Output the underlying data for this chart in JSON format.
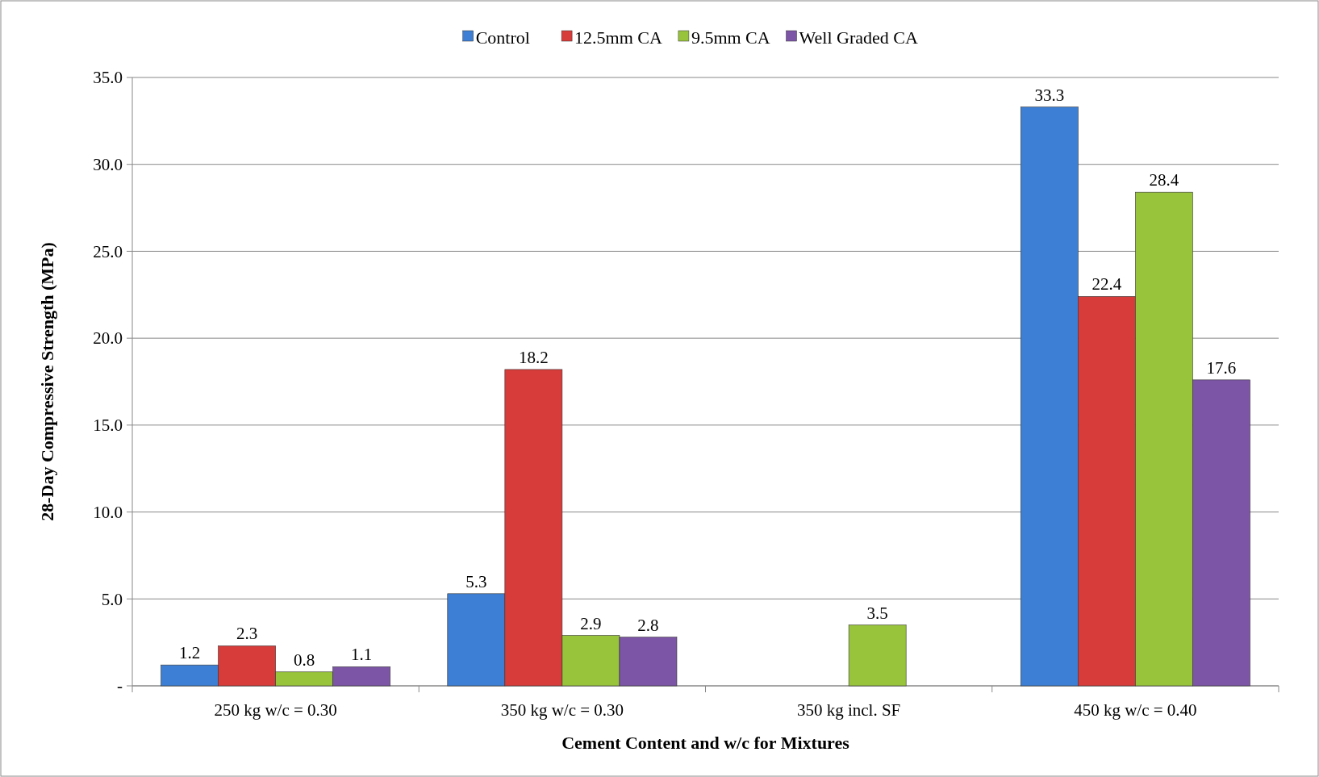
{
  "chart_data": {
    "type": "bar",
    "xlabel": "Cement Content and w/c for Mixtures",
    "ylabel": "28-Day Compressive Strength (MPa)",
    "categories": [
      "250 kg w/c = 0.30",
      "350 kg w/c = 0.30",
      "350 kg incl. SF",
      "450 kg w/c = 0.40"
    ],
    "series": [
      {
        "name": "Control",
        "color": "#3d7fd4",
        "values": [
          1.2,
          5.3,
          null,
          33.3
        ]
      },
      {
        "name": "12.5mm CA",
        "color": "#d83c3a",
        "values": [
          2.3,
          18.2,
          null,
          22.4
        ]
      },
      {
        "name": "9.5mm CA",
        "color": "#98c43c",
        "values": [
          0.8,
          2.9,
          3.5,
          28.4
        ]
      },
      {
        "name": "Well Graded CA",
        "color": "#7d55a6",
        "values": [
          1.1,
          2.8,
          null,
          17.6
        ]
      }
    ],
    "ylim": [
      0,
      35
    ],
    "yticks": [
      {
        "value": 0,
        "label": "-"
      },
      {
        "value": 5,
        "label": "5.0"
      },
      {
        "value": 10,
        "label": "10.0"
      },
      {
        "value": 15,
        "label": "15.0"
      },
      {
        "value": 20,
        "label": "20.0"
      },
      {
        "value": 25,
        "label": "25.0"
      },
      {
        "value": 30,
        "label": "30.0"
      },
      {
        "value": 35,
        "label": "35.0"
      }
    ],
    "grid": "y",
    "legend": "top",
    "data_labels": true
  }
}
